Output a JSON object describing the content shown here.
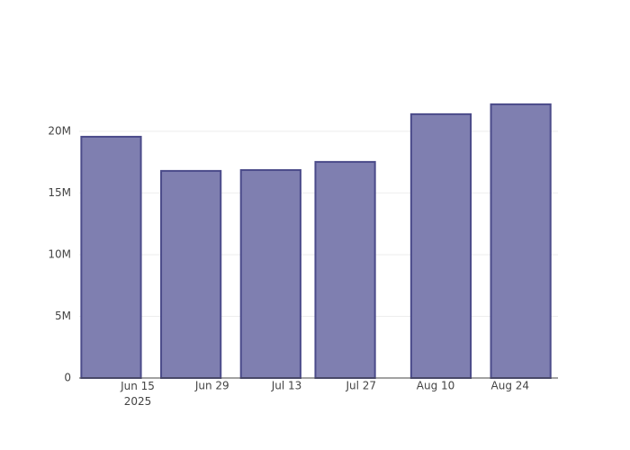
{
  "chart_data": {
    "type": "bar",
    "x": [
      "2025-06-10",
      "2025-06-25",
      "2025-07-10",
      "2025-07-24",
      "2025-08-11",
      "2025-08-26"
    ],
    "values": [
      19560000,
      16790000,
      16860000,
      17520000,
      21390000,
      22190000
    ],
    "color": "#7f7fb0",
    "edge_color": "#4b4b8a",
    "xlim": [
      "2025-06-04",
      "2025-09-02"
    ],
    "xticks": [
      {
        "value": "2025-06-15",
        "label": "Jun 15\n2025"
      },
      {
        "value": "2025-06-29",
        "label": "Jun 29"
      },
      {
        "value": "2025-07-13",
        "label": "Jul 13"
      },
      {
        "value": "2025-07-27",
        "label": "Jul 27"
      },
      {
        "value": "2025-08-10",
        "label": "Aug 10"
      },
      {
        "value": "2025-08-24",
        "label": "Aug 24"
      }
    ],
    "ylim": [
      0,
      23350000
    ],
    "yticks": [
      0,
      {
        "value": 5000000,
        "label": "5M"
      },
      {
        "value": 10000000,
        "label": "10M"
      },
      {
        "value": 15000000,
        "label": "15M"
      },
      {
        "value": 20000000,
        "label": "20M"
      }
    ],
    "grid": true
  }
}
